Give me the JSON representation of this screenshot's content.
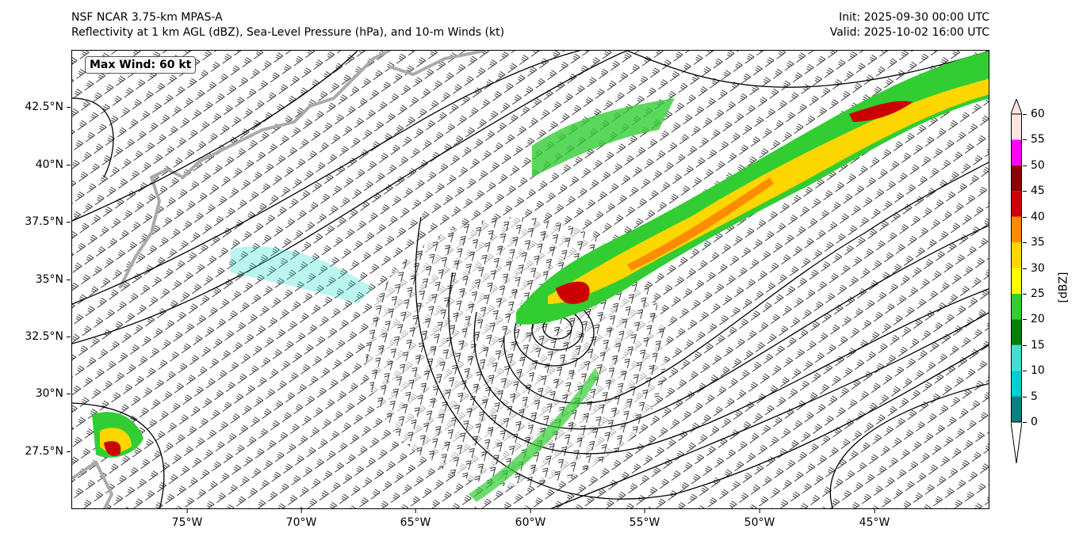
{
  "header": {
    "title_line1": "NSF NCAR 3.75-km MPAS-A",
    "title_line2": "Reflectivity at 1 km AGL (dBZ), Sea-Level Pressure (hPa), and 10-m Winds (kt)",
    "init": "Init: 2025-09-30 00:00 UTC",
    "valid": "Valid: 2025-10-02 16:00 UTC"
  },
  "annotation": {
    "max_wind": "Max Wind: 60 kt"
  },
  "axes": {
    "lat_ticks": [
      "42.5°N",
      "40°N",
      "37.5°N",
      "35°N",
      "32.5°N",
      "30°N",
      "27.5°N"
    ],
    "lon_ticks": [
      "75°W",
      "70°W",
      "65°W",
      "60°W",
      "55°W",
      "50°W",
      "45°W"
    ]
  },
  "colorbar": {
    "label": "[dBZ]",
    "ticks": [
      "0",
      "5",
      "10",
      "15",
      "20",
      "25",
      "30",
      "35",
      "40",
      "45",
      "50",
      "55",
      "60"
    ],
    "colors": [
      "#008080",
      "#00CED1",
      "#40E0D0",
      "#008000",
      "#32CD32",
      "#FFFF00",
      "#FFD700",
      "#FF8C00",
      "#CC0000",
      "#8B0000",
      "#FF00FF",
      "#FFE4E1"
    ],
    "under_color": "#FFFFFF",
    "over_color": "#FFE4E1"
  }
}
